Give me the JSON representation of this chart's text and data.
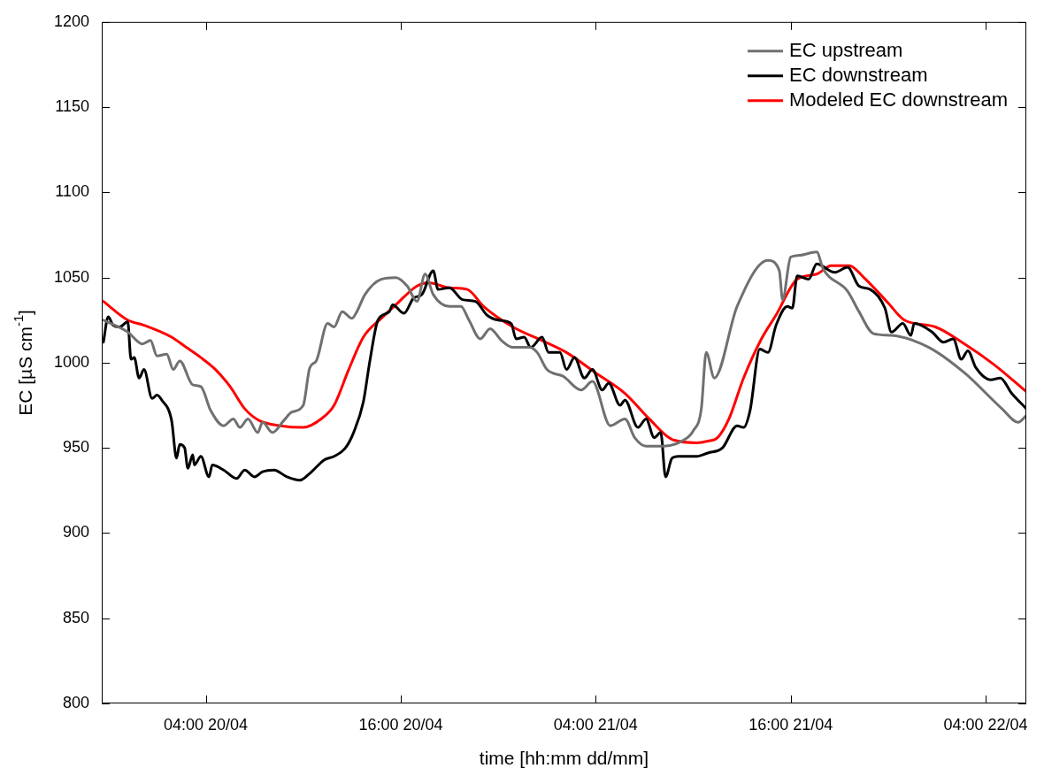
{
  "chart_data": {
    "type": "line",
    "xlabel": "time [hh:mm dd/mm]",
    "ylabel": "EC [µS cm$^{-1}$]",
    "xlim": [
      "--04-19T21:36",
      "--04-22T06:30"
    ],
    "xticks": [
      {
        "value": "--04-20T04:00",
        "label": "04:00 20/04"
      },
      {
        "value": "--04-20T16:00",
        "label": "16:00 20/04"
      },
      {
        "value": "--04-21T04:00",
        "label": "04:00 21/04"
      },
      {
        "value": "--04-21T16:00",
        "label": "16:00 21/04"
      },
      {
        "value": "--04-22T04:00",
        "label": "04:00 22/04"
      }
    ],
    "ylim": [
      800,
      1200
    ],
    "yticks": [
      800,
      850,
      900,
      950,
      1000,
      1050,
      1100,
      1150,
      1200
    ],
    "legend": "top right",
    "grid": false,
    "series": [
      {
        "name": "EC upstream",
        "color": "#707070",
        "x": [
          "--04-19T21:42",
          "--04-19T23:12",
          "--04-20T00:06",
          "--04-20T00:36",
          "--04-20T01:00",
          "--04-20T01:36",
          "--04-20T02:00",
          "--04-20T02:24",
          "--04-20T03:12",
          "--04-20T03:42",
          "--04-20T04:18",
          "--04-20T05:06",
          "--04-20T05:42",
          "--04-20T06:06",
          "--04-20T06:36",
          "--04-20T07:12",
          "--04-20T07:30",
          "--04-20T08:06",
          "--04-20T08:48",
          "--04-20T09:18",
          "--04-20T10:00",
          "--04-20T10:24",
          "--04-20T10:48",
          "--04-20T11:30",
          "--04-20T11:54",
          "--04-20T12:24",
          "--04-20T13:00",
          "--04-20T13:18",
          "--04-20T13:48",
          "--04-20T14:48",
          "--04-20T15:42",
          "--04-20T16:24",
          "--04-20T17:00",
          "--04-20T17:30",
          "--04-20T18:00",
          "--04-20T19:00",
          "--04-20T19:42",
          "--04-20T20:12",
          "--04-20T20:54",
          "--04-20T21:30",
          "--04-20T22:12",
          "--04-20T22:54",
          "--04-20T23:54",
          "--04-21T00:24",
          "--04-21T01:00",
          "--04-21T02:00",
          "--04-21T03:06",
          "--04-21T03:48",
          "--04-21T04:54",
          "--04-21T05:48",
          "--04-21T06:24",
          "--04-21T07:06",
          "--04-21T08:12",
          "--04-21T09:18",
          "--04-21T10:00",
          "--04-21T10:30",
          "--04-21T10:48",
          "--04-21T11:18",
          "--04-21T12:42",
          "--04-21T14:36",
          "--04-21T15:18",
          "--04-21T15:30",
          "--04-21T16:00",
          "--04-21T16:30",
          "--04-21T17:36",
          "--04-21T18:00",
          "--04-21T19:30",
          "--04-21T20:12",
          "--04-21T21:06",
          "--04-21T22:12",
          "--04-22T00:30",
          "--04-22T02:42",
          "--04-22T05:00",
          "--04-22T06:00",
          "--04-22T06:30"
        ],
        "values": [
          1025,
          1018,
          1011,
          1013,
          1004,
          1005,
          996,
          1001,
          987,
          986,
          972,
          963,
          967,
          962,
          967,
          959,
          965,
          959,
          966,
          971,
          975,
          997,
          1001,
          1023,
          1021,
          1030,
          1026,
          1030,
          1040,
          1049,
          1050,
          1045,
          1036,
          1052,
          1040,
          1033,
          1033,
          1025,
          1014,
          1020,
          1013,
          1009,
          1009,
          1006,
          996,
          992,
          984,
          989,
          963,
          967,
          956,
          951,
          951,
          954,
          960,
          973,
          1006,
          991,
          1033,
          1060,
          1054,
          1037,
          1062,
          1063,
          1065,
          1055,
          1042,
          1030,
          1017,
          1016,
          1009,
          994,
          973,
          965,
          969
        ]
      },
      {
        "name": "EC downstream",
        "color": "#000000",
        "x": [
          "--04-19T21:42",
          "--04-19T22:00",
          "--04-19T22:18",
          "--04-19T22:42",
          "--04-19T23:12",
          "--04-19T23:24",
          "--04-19T23:36",
          "--04-19T23:54",
          "--04-20T00:12",
          "--04-20T00:42",
          "--04-20T01:00",
          "--04-20T01:18",
          "--04-20T01:54",
          "--04-20T02:12",
          "--04-20T02:24",
          "--04-20T02:42",
          "--04-20T02:54",
          "--04-20T03:12",
          "--04-20T03:18",
          "--04-20T03:42",
          "--04-20T04:12",
          "--04-20T04:24",
          "--04-20T05:06",
          "--04-20T05:54",
          "--04-20T06:24",
          "--04-20T07:00",
          "--04-20T07:30",
          "--04-20T08:12",
          "--04-20T09:00",
          "--04-20T09:48",
          "--04-20T10:24",
          "--04-20T11:18",
          "--04-20T11:54",
          "--04-20T12:36",
          "--04-20T13:06",
          "--04-20T13:42",
          "--04-20T14:06",
          "--04-20T14:36",
          "--04-20T15:18",
          "--04-20T15:30",
          "--04-20T16:12",
          "--04-20T16:48",
          "--04-20T17:18",
          "--04-20T18:00",
          "--04-20T18:18",
          "--04-20T19:00",
          "--04-20T19:48",
          "--04-20T20:36",
          "--04-20T21:18",
          "--04-20T22:00",
          "--04-20T22:48",
          "--04-20T23:06",
          "--04-20T23:36",
          "--04-21T00:00",
          "--04-21T00:42",
          "--04-21T01:06",
          "--04-21T01:48",
          "--04-21T02:12",
          "--04-21T02:42",
          "--04-21T03:18",
          "--04-21T03:48",
          "--04-21T04:24",
          "--04-21T04:48",
          "--04-21T05:30",
          "--04-21T05:48",
          "--04-21T06:36",
          "--04-21T07:06",
          "--04-21T07:36",
          "--04-21T08:00",
          "--04-21T08:18",
          "--04-21T08:42",
          "--04-21T09:06",
          "--04-21T10:12",
          "--04-21T10:54",
          "--04-21T11:48",
          "--04-21T12:42",
          "--04-21T13:06",
          "--04-21T13:30",
          "--04-21T14:06",
          "--04-21T14:36",
          "--04-21T15:06",
          "--04-21T15:48",
          "--04-21T16:06",
          "--04-21T16:24",
          "--04-21T17:06",
          "--04-21T17:36",
          "--04-21T18:42",
          "--04-21T19:30",
          "--04-21T20:12",
          "--04-21T20:54",
          "--04-21T21:48",
          "--04-21T22:12",
          "--04-21T22:54",
          "--04-21T23:24",
          "--04-21T23:36",
          "--04-22T00:42",
          "--04-22T01:24",
          "--04-22T02:00",
          "--04-22T02:30",
          "--04-22T02:54",
          "--04-22T03:24",
          "--04-22T04:18",
          "--04-22T04:54",
          "--04-22T05:36",
          "--04-22T06:30"
        ],
        "values": [
          1012,
          1027,
          1022,
          1021,
          1024,
          1002,
          1003,
          991,
          996,
          979,
          981,
          978,
          966,
          944,
          952,
          950,
          938,
          946,
          940,
          945,
          933,
          940,
          937,
          932,
          937,
          933,
          936,
          937,
          933,
          931,
          935,
          943,
          945,
          950,
          959,
          977,
          1001,
          1025,
          1030,
          1034,
          1029,
          1038,
          1040,
          1054,
          1043,
          1044,
          1037,
          1036,
          1028,
          1025,
          1023,
          1014,
          1015,
          1009,
          1015,
          1006,
          1006,
          996,
          1003,
          991,
          996,
          984,
          988,
          975,
          978,
          962,
          967,
          956,
          959,
          933,
          944,
          945,
          945,
          947,
          950,
          963,
          962,
          972,
          1008,
          1006,
          1022,
          1033,
          1032,
          1051,
          1049,
          1058,
          1053,
          1056,
          1045,
          1043,
          1032,
          1018,
          1023,
          1016,
          1023,
          1018,
          1012,
          1014,
          1002,
          1007,
          997,
          990,
          991,
          982,
          973
        ]
      },
      {
        "name": "Modeled EC downstream",
        "color": "#ff0000",
        "x": [
          "--04-19T21:42",
          "--04-19T23:12",
          "--04-20T00:12",
          "--04-20T01:54",
          "--04-20T02:48",
          "--04-20T03:42",
          "--04-20T04:36",
          "--04-20T05:30",
          "--04-20T06:24",
          "--04-20T07:18",
          "--04-20T08:36",
          "--04-20T10:00",
          "--04-20T11:06",
          "--04-20T11:54",
          "--04-20T12:48",
          "--04-20T13:42",
          "--04-20T14:48",
          "--04-20T15:42",
          "--04-20T17:00",
          "--04-20T17:42",
          "--04-20T19:00",
          "--04-20T20:06",
          "--04-20T21:06",
          "--04-20T22:54",
          "--04-21T00:42",
          "--04-21T02:12",
          "--04-21T04:00",
          "--04-21T05:48",
          "--04-21T07:18",
          "--04-21T08:42",
          "--04-21T10:12",
          "--04-21T10:54",
          "--04-21T11:30",
          "--04-21T12:12",
          "--04-21T13:06",
          "--04-21T14:12",
          "--04-21T15:06",
          "--04-21T16:24",
          "--04-21T17:36",
          "--04-21T18:30",
          "--04-21T19:36",
          "--04-21T20:30",
          "--04-21T22:00",
          "--04-21T23:00",
          "--04-22T00:54",
          "--04-22T02:42",
          "--04-22T04:30",
          "--04-22T06:30"
        ],
        "values": [
          1036,
          1025,
          1022,
          1015,
          1009,
          1003,
          996,
          986,
          973,
          966,
          963,
          962,
          967,
          975,
          996,
          1015,
          1026,
          1034,
          1045,
          1047,
          1044,
          1043,
          1033,
          1021,
          1013,
          1006,
          994,
          982,
          967,
          955,
          953,
          954,
          956,
          967,
          991,
          1014,
          1028,
          1049,
          1052,
          1057,
          1057,
          1050,
          1035,
          1025,
          1021,
          1011,
          999,
          983
        ]
      }
    ]
  }
}
